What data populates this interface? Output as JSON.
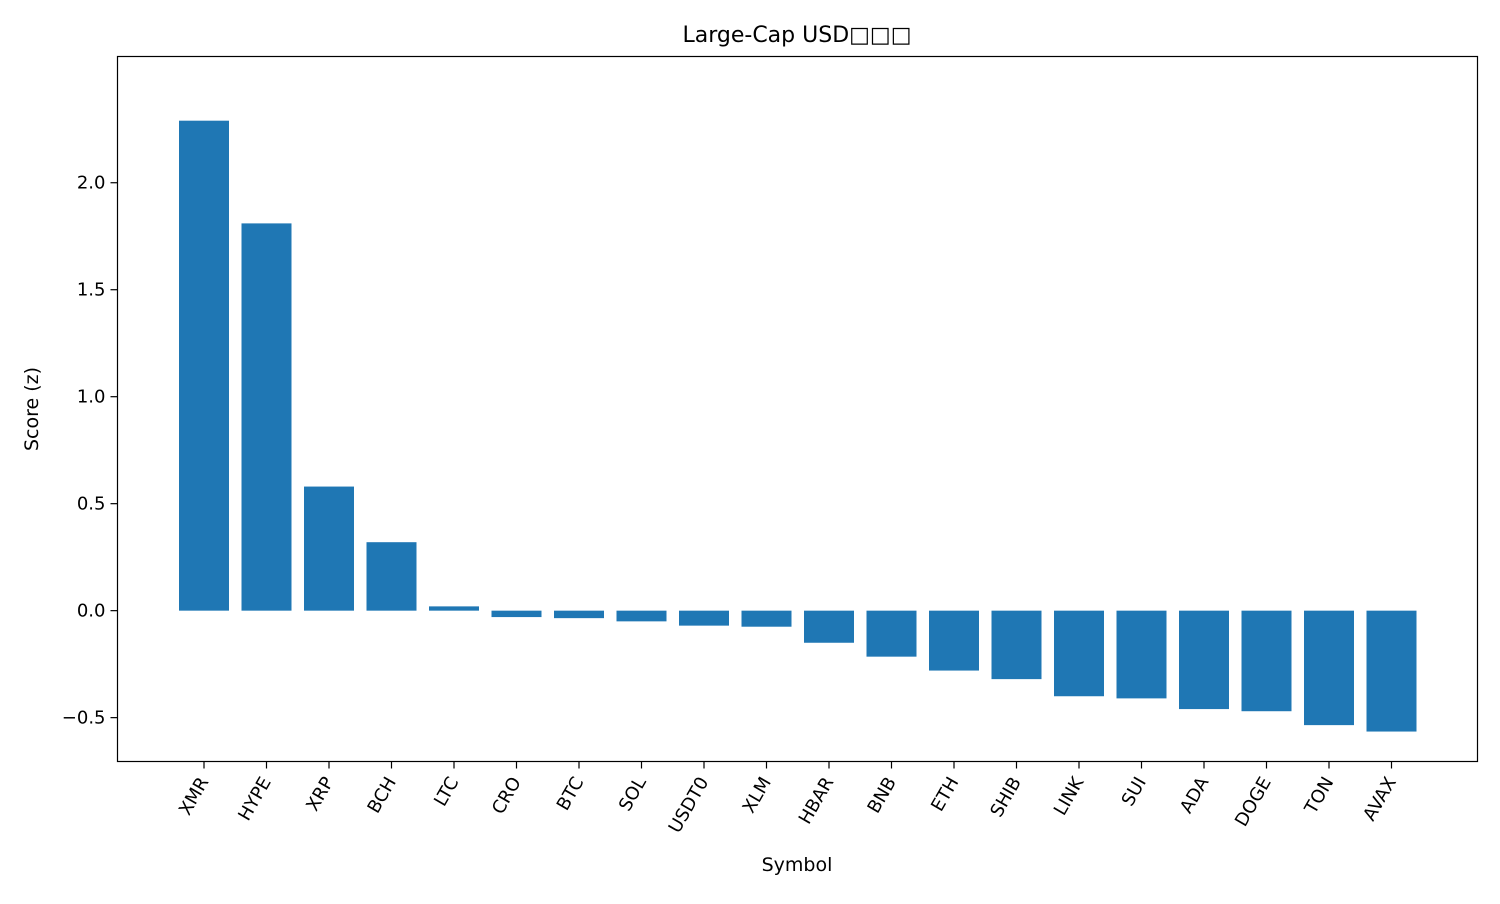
{
  "chart_data": {
    "type": "bar",
    "title": "Large-Cap USD□□□",
    "xlabel": "Symbol",
    "ylabel": "Score (z)",
    "categories": [
      "XMR",
      "HYPE",
      "XRP",
      "BCH",
      "LTC",
      "CRO",
      "BTC",
      "SOL",
      "USDT0",
      "XLM",
      "HBAR",
      "BNB",
      "ETH",
      "SHIB",
      "LINK",
      "SUI",
      "ADA",
      "DOGE",
      "TON",
      "AVAX"
    ],
    "values": [
      2.29,
      1.81,
      0.58,
      0.32,
      0.02,
      -0.03,
      -0.035,
      -0.05,
      -0.07,
      -0.075,
      -0.15,
      -0.215,
      -0.28,
      -0.32,
      -0.4,
      -0.41,
      -0.46,
      -0.47,
      -0.535,
      -0.565
    ],
    "ylim": [
      -0.705,
      2.59
    ],
    "yticks": [
      -0.5,
      0.0,
      0.5,
      1.0,
      1.5,
      2.0
    ],
    "ytick_labels": [
      "−0.5",
      "0.0",
      "0.5",
      "1.0",
      "1.5",
      "2.0"
    ],
    "bar_color": "#1f77b4",
    "grid": false,
    "legend": "none"
  }
}
